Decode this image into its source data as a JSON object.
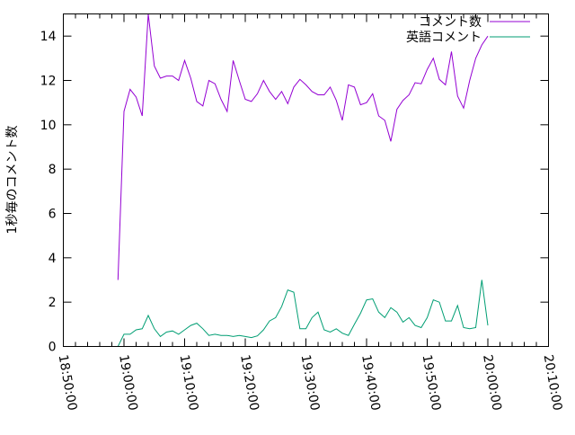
{
  "chart_data": {
    "type": "line",
    "title": "",
    "xlabel": "",
    "ylabel": "1秒毎のコメント数",
    "xlim": [
      "18:50:00",
      "20:10:00"
    ],
    "ylim": [
      0,
      15
    ],
    "xticks": [
      "18:50:00",
      "19:00:00",
      "19:10:00",
      "19:20:00",
      "19:30:00",
      "19:40:00",
      "19:50:00",
      "20:00:00",
      "20:10:00"
    ],
    "yticks": [
      "0",
      "2",
      "4",
      "6",
      "8",
      "10",
      "12",
      "14"
    ],
    "grid": false,
    "legend": "top-right",
    "x": [
      "18:59",
      "19:00",
      "19:01",
      "19:02",
      "19:03",
      "19:04",
      "19:05",
      "19:06",
      "19:07",
      "19:08",
      "19:09",
      "19:10",
      "19:11",
      "19:12",
      "19:13",
      "19:14",
      "19:15",
      "19:16",
      "19:17",
      "19:18",
      "19:19",
      "19:20",
      "19:21",
      "19:22",
      "19:23",
      "19:24",
      "19:25",
      "19:26",
      "19:27",
      "19:28",
      "19:29",
      "19:30",
      "19:31",
      "19:32",
      "19:33",
      "19:34",
      "19:35",
      "19:36",
      "19:37",
      "19:38",
      "19:39",
      "19:40",
      "19:41",
      "19:42",
      "19:43",
      "19:44",
      "19:45",
      "19:46",
      "19:47",
      "19:48",
      "19:49",
      "19:50",
      "19:51",
      "19:52",
      "19:53",
      "19:54",
      "19:55",
      "19:56",
      "19:57",
      "19:58",
      "19:59",
      "20:00"
    ],
    "series": [
      {
        "name": "コメント数",
        "color": "#9400d3",
        "values": [
          3.0,
          10.6,
          11.6,
          11.25,
          10.4,
          15.0,
          12.65,
          12.1,
          12.2,
          12.2,
          12.0,
          12.9,
          12.1,
          11.05,
          10.85,
          12.0,
          11.85,
          11.15,
          10.6,
          12.9,
          12.0,
          11.15,
          11.05,
          11.4,
          12.0,
          11.5,
          11.15,
          11.5,
          10.95,
          11.7,
          12.05,
          11.8,
          11.5,
          11.35,
          11.35,
          11.7,
          11.1,
          10.2,
          11.8,
          11.7,
          10.9,
          11.0,
          11.4,
          10.4,
          10.2,
          9.25,
          10.7,
          11.1,
          11.35,
          11.9,
          11.85,
          12.5,
          13.0,
          12.05,
          11.8,
          13.3,
          11.3,
          10.75,
          12.0,
          13.0,
          13.6,
          14.0
        ]
      },
      {
        "name": "英語コメント",
        "color": "#009e73",
        "values": [
          0.0,
          0.55,
          0.55,
          0.75,
          0.8,
          1.4,
          0.8,
          0.45,
          0.65,
          0.7,
          0.55,
          0.75,
          0.95,
          1.05,
          0.8,
          0.5,
          0.55,
          0.5,
          0.5,
          0.45,
          0.5,
          0.45,
          0.4,
          0.48,
          0.75,
          1.15,
          1.3,
          1.8,
          2.55,
          2.45,
          0.8,
          0.8,
          1.3,
          1.55,
          0.75,
          0.65,
          0.8,
          0.6,
          0.5,
          1.0,
          1.5,
          2.1,
          2.15,
          1.55,
          1.3,
          1.75,
          1.55,
          1.1,
          1.3,
          0.95,
          0.85,
          1.3,
          2.1,
          2.0,
          1.15,
          1.15,
          1.85,
          0.85,
          0.8,
          0.85,
          3.0,
          0.95
        ]
      }
    ]
  }
}
